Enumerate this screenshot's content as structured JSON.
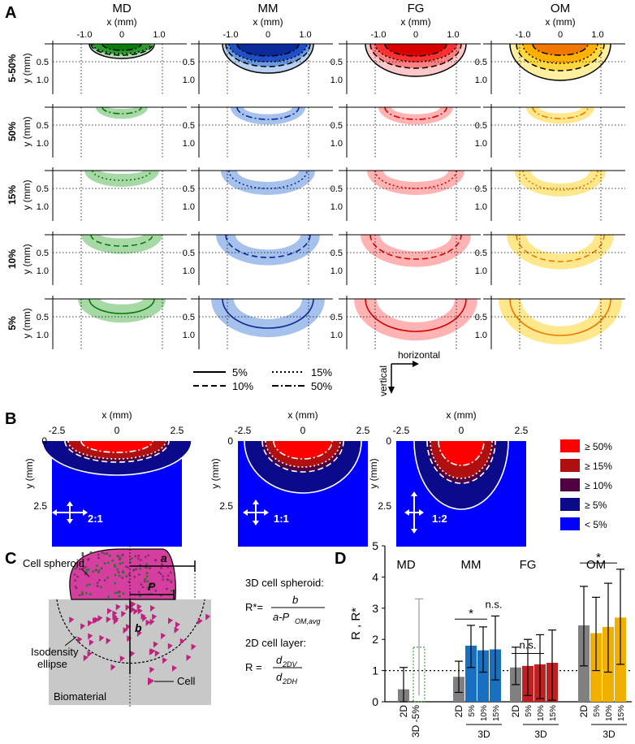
{
  "figure": {
    "panel_labels": [
      "A",
      "B",
      "C",
      "D"
    ]
  },
  "panelA": {
    "columns": [
      "MD",
      "MM",
      "FG",
      "OM"
    ],
    "x_axis_label": "x (mm)",
    "x_ticks": [
      "-1.0",
      "0",
      "1.0"
    ],
    "y_axis_label": "y (mm)",
    "y_ticks": [
      "0.5",
      "1.0"
    ],
    "rows": [
      "5-50%",
      "50%",
      "15%",
      "10%",
      "5%"
    ],
    "legend": {
      "solid": "5%",
      "dashed": "10%",
      "dotted": "15%",
      "dashdot": "50%"
    },
    "orientation": {
      "horizontal": "horizontal",
      "vertical": "vertical"
    },
    "colors": {
      "MD": [
        "#0a7a0a",
        "#2a9a2a",
        "#6cc06c",
        "#b8e0b8"
      ],
      "MM": [
        "#0a2a9a",
        "#2050c8",
        "#6a9ae0",
        "#b8d0f0"
      ],
      "FG": [
        "#d80000",
        "#ff3030",
        "#ff8080",
        "#ffc8c8"
      ],
      "OM": [
        "#f07800",
        "#ffb000",
        "#ffd840",
        "#fff0a0"
      ]
    }
  },
  "panelB": {
    "x_axis_label": "x (mm)",
    "x_ticks": [
      "-2.5",
      "0",
      "2.5"
    ],
    "y_axis_label": "y (mm)",
    "y_ticks": [
      "0",
      "2.5"
    ],
    "ratios": [
      "2:1",
      "1:1",
      "1:2"
    ],
    "legend": [
      {
        "label": "≥ 50%",
        "color": "#ff0000"
      },
      {
        "label": "≥ 15%",
        "color": "#b01010"
      },
      {
        "label": "≥ 10%",
        "color": "#500040"
      },
      {
        "label": "≥ 5%",
        "color": "#0a0a8a"
      },
      {
        "label": "< 5%",
        "color": "#0000ff"
      }
    ]
  },
  "panelC": {
    "labels": {
      "spheroid": "Cell spheroid",
      "a": "a",
      "P": "P",
      "b": "b",
      "ellipse1": "Isodensity",
      "ellipse2": "ellipse",
      "cell": "Cell",
      "biomaterial": "Biomaterial"
    },
    "eq3d_title": "3D cell spheroid:",
    "eq3d_lhs": "R*=",
    "eq3d_num": "b",
    "eq3d_den_a": "a-P",
    "eq3d_den_sub": "OM,avg",
    "eq2d_title": "2D cell layer:",
    "eq2d_lhs": "R =",
    "eq2d_num": "d",
    "eq2d_num_sub": "2DV",
    "eq2d_den": "d",
    "eq2d_den_sub": "2DH"
  },
  "chart_data": {
    "type": "bar",
    "title": "",
    "ylabel": "R , R*",
    "ylim": [
      0,
      5
    ],
    "y_ticks": [
      "0",
      "1",
      "2",
      "3",
      "4",
      "5"
    ],
    "reference_line": 1,
    "groups": [
      "MD",
      "MM",
      "FG",
      "OM"
    ],
    "bar_labels": [
      "2D",
      "5%",
      "10%",
      "15%"
    ],
    "md_bar_labels": [
      "2D",
      "3D -5%"
    ],
    "group_sublabel_3d": "3D",
    "colors": {
      "2D": "#808080",
      "MD": "#3a9a3a",
      "MM": "#1a70c0",
      "FG": "#c02020",
      "OM": "#f0b000"
    },
    "series": [
      {
        "group": "MD",
        "values": [
          0.4,
          1.0
        ],
        "err_low": [
          0.0,
          0.2
        ],
        "err_high": [
          1.1,
          3.3
        ]
      },
      {
        "group": "MM",
        "values": [
          0.8,
          1.8,
          1.65,
          1.68
        ],
        "err_low": [
          0.3,
          1.1,
          0.95,
          0.7
        ],
        "err_high": [
          1.3,
          2.45,
          2.4,
          2.75
        ]
      },
      {
        "group": "FG",
        "values": [
          1.1,
          1.15,
          1.2,
          1.25
        ],
        "err_low": [
          0.55,
          0.2,
          0.1,
          0.05
        ],
        "err_high": [
          1.75,
          2.0,
          2.15,
          2.3
        ]
      },
      {
        "group": "OM",
        "values": [
          2.45,
          2.2,
          2.4,
          2.7
        ],
        "err_low": [
          1.15,
          1.0,
          0.95,
          1.2
        ],
        "err_high": [
          3.7,
          3.35,
          3.8,
          4.25
        ]
      }
    ],
    "significance": [
      {
        "group": "MM",
        "label": "*"
      },
      {
        "group": "MM",
        "label": "n.s."
      },
      {
        "group": "FG",
        "label": "n.s."
      },
      {
        "group": "OM",
        "label": "*"
      }
    ]
  }
}
